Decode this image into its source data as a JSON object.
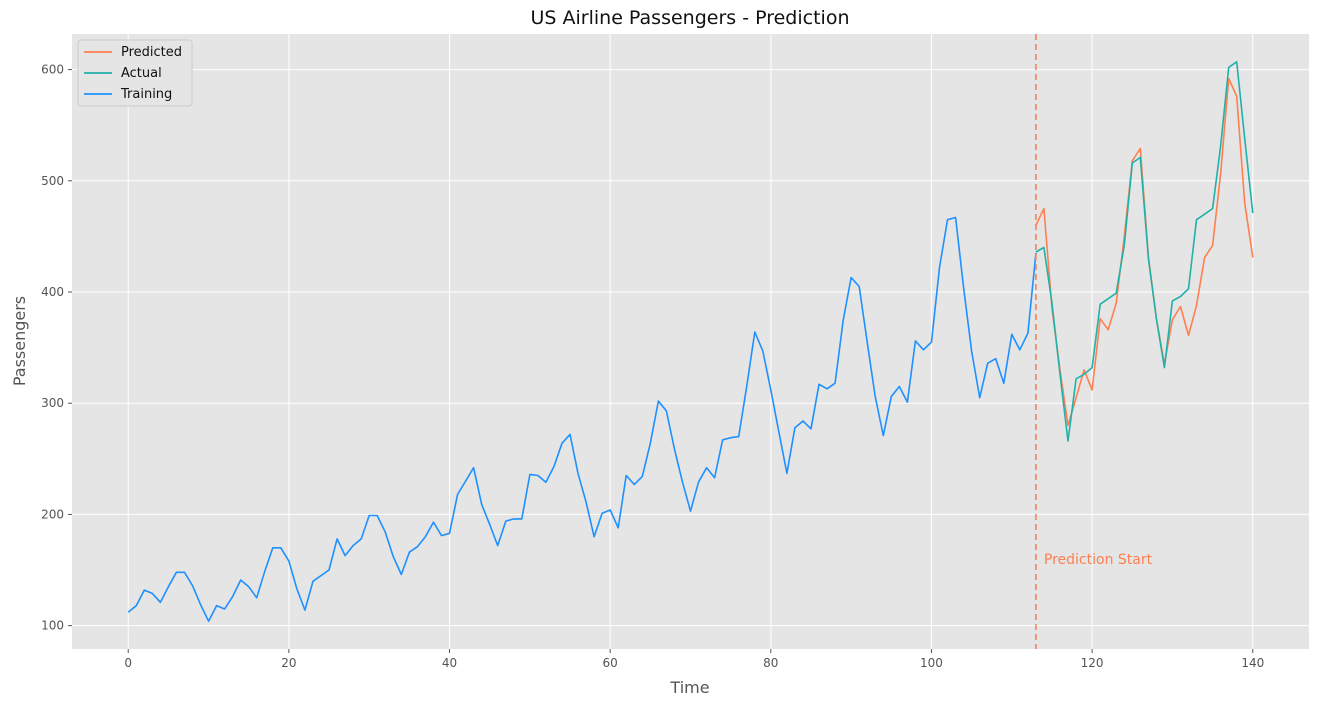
{
  "chart_data": {
    "type": "line",
    "title": "US Airline Passengers - Prediction",
    "xlabel": "Time",
    "ylabel": "Passengers",
    "xlim": [
      -7,
      147
    ],
    "ylim": [
      79,
      632
    ],
    "xticks": [
      0,
      20,
      40,
      60,
      80,
      100,
      120,
      140
    ],
    "yticks": [
      100,
      200,
      300,
      400,
      500,
      600
    ],
    "grid": true,
    "legend_position": "top-left",
    "colors": {
      "background": "#e5e5e5",
      "grid": "#ffffff",
      "predicted": "#ff7f50",
      "actual": "#20b2aa",
      "training": "#1e90ff",
      "annotation": "#ff7f50"
    },
    "series": [
      {
        "name": "Predicted",
        "x": [
          113,
          114,
          115,
          116,
          117,
          118,
          119,
          120,
          121,
          122,
          123,
          124,
          125,
          126,
          127,
          128,
          129,
          130,
          131,
          132,
          133,
          134,
          135,
          136,
          137,
          138,
          139,
          140
        ],
        "values": [
          460,
          475,
          385,
          330,
          280,
          305,
          330,
          312,
          376,
          366,
          390,
          450,
          518,
          529,
          432,
          376,
          335,
          375,
          387,
          361,
          388,
          431,
          442,
          506,
          592,
          576,
          480,
          431
        ]
      },
      {
        "name": "Actual",
        "x": [
          113,
          114,
          115,
          116,
          117,
          118,
          119,
          120,
          121,
          122,
          123,
          124,
          125,
          126,
          127,
          128,
          129,
          130,
          131,
          132,
          133,
          134,
          135,
          136,
          137,
          138,
          139,
          140
        ],
        "values": [
          436,
          440,
          390,
          326,
          266,
          322,
          326,
          332,
          389,
          394,
          399,
          442,
          516,
          521,
          430,
          376,
          332,
          392,
          396,
          403,
          465,
          470,
          475,
          531,
          602,
          607,
          538,
          471
        ]
      },
      {
        "name": "Training",
        "x": [
          0,
          1,
          2,
          3,
          4,
          5,
          6,
          7,
          8,
          9,
          10,
          11,
          12,
          13,
          14,
          15,
          16,
          17,
          18,
          19,
          20,
          21,
          22,
          23,
          24,
          25,
          26,
          27,
          28,
          29,
          30,
          31,
          32,
          33,
          34,
          35,
          36,
          37,
          38,
          39,
          40,
          41,
          42,
          43,
          44,
          45,
          46,
          47,
          48,
          49,
          50,
          51,
          52,
          53,
          54,
          55,
          56,
          57,
          58,
          59,
          60,
          61,
          62,
          63,
          64,
          65,
          66,
          67,
          68,
          69,
          70,
          71,
          72,
          73,
          74,
          75,
          76,
          77,
          78,
          79,
          80,
          81,
          82,
          83,
          84,
          85,
          86,
          87,
          88,
          89,
          90,
          91,
          92,
          93,
          94,
          95,
          96,
          97,
          98,
          99,
          100,
          101,
          102,
          103,
          104,
          105,
          106,
          107,
          108,
          109,
          110,
          111,
          112,
          113
        ],
        "values": [
          112,
          118,
          132,
          129,
          121,
          135,
          148,
          148,
          136,
          119,
          104,
          118,
          115,
          126,
          141,
          135,
          125,
          149,
          170,
          170,
          158,
          133,
          114,
          140,
          145,
          150,
          178,
          163,
          172,
          178,
          199,
          199,
          184,
          162,
          146,
          166,
          171,
          180,
          193,
          181,
          183,
          218,
          230,
          242,
          209,
          191,
          172,
          194,
          196,
          196,
          236,
          235,
          229,
          243,
          264,
          272,
          237,
          211,
          180,
          201,
          204,
          188,
          235,
          227,
          234,
          264,
          302,
          293,
          259,
          229,
          203,
          229,
          242,
          233,
          267,
          269,
          270,
          315,
          364,
          347,
          312,
          274,
          237,
          278,
          284,
          277,
          317,
          313,
          318,
          374,
          413,
          405,
          355,
          306,
          271,
          306,
          315,
          301,
          356,
          348,
          355,
          422,
          465,
          467,
          404,
          347,
          305,
          336,
          340,
          318,
          362,
          348,
          363,
          435
        ]
      }
    ],
    "vline": {
      "x": 113,
      "style": "dashed",
      "label": "Prediction Start",
      "label_y": 160
    }
  }
}
